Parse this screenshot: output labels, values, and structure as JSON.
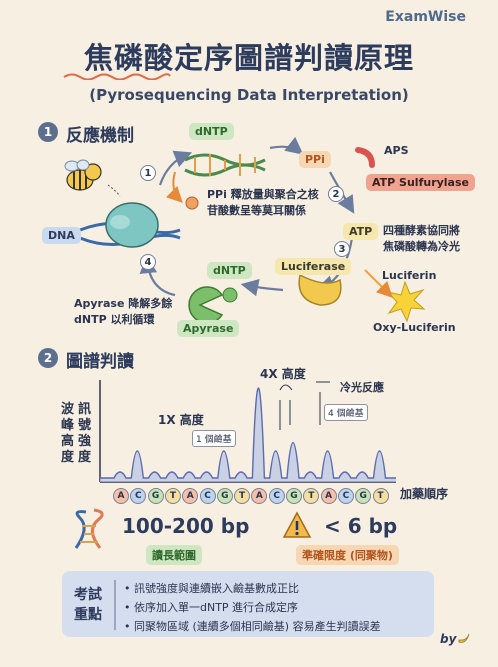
{
  "brand": "ExamWise",
  "title": "焦磷酸定序圖譜判讀原理",
  "subtitle": "(Pyrosequencing Data Interpretation)",
  "section1": {
    "number": "1",
    "title": "反應機制",
    "labels": {
      "dntp_top": "dNTP",
      "ppi": "PPi",
      "aps": "APS",
      "atp_sulfurylase": "ATP Sulfurylase",
      "atp": "ATP",
      "dna": "DNA",
      "luciferase": "Luciferase",
      "luciferin": "Luciferin",
      "oxy_luciferin": "Oxy-Luciferin",
      "dntp_bottom": "dNTP",
      "apyrase": "Apyrase"
    },
    "steps": [
      "1",
      "2",
      "3",
      "4"
    ],
    "notes": {
      "ppi_release_line1": "PPi 釋放量與聚合之核",
      "ppi_release_line2": "苷酸數呈等莫耳關係",
      "enzyme_line1": "四種酵素協同將",
      "enzyme_line2": "焦磷酸轉為冷光",
      "apyrase_line1": "Apyrase 降解多餘",
      "apyrase_line2": "dNTP 以利循環"
    }
  },
  "section2": {
    "number": "2",
    "title": "圖譜判讀",
    "y_axis_label": [
      "訊",
      "號",
      "強",
      "度",
      "波",
      "峰",
      "高",
      "度"
    ],
    "x_axis_label": "加藥順序",
    "annotations": {
      "peak_1x": "1X 高度",
      "one_base": "1 個鹼基",
      "peak_4x": "4X 高度",
      "four_bases": "4 個鹼基",
      "light": "冷光反應"
    },
    "dispensation_order": [
      "A",
      "C",
      "G",
      "T",
      "A",
      "C",
      "G",
      "T",
      "A",
      "C",
      "G",
      "T",
      "A",
      "C",
      "G",
      "T"
    ],
    "peaks": [
      0,
      1,
      0,
      0,
      0,
      0,
      1,
      0,
      4,
      1,
      1.4,
      0,
      1,
      0,
      0,
      1
    ]
  },
  "stats": {
    "read_length_value": "100-200 bp",
    "read_length_label": "讀長範圍",
    "limit_value": "< 6 bp",
    "limit_label": "準確限度 (同聚物)"
  },
  "exam_points": {
    "label_line1": "考試",
    "label_line2": "重點",
    "items": [
      "訊號強度與連續嵌入鹼基數成正比",
      "依序加入單一dNTP 進行合成定序",
      "同聚物區域 (連續多個相同鹼基) 容易產生判讀誤差"
    ]
  },
  "signature": "by",
  "colors": {
    "A": "#f6c0a8",
    "C": "#bcd4ee",
    "G": "#c6e3b4",
    "T": "#f4dfa0"
  }
}
